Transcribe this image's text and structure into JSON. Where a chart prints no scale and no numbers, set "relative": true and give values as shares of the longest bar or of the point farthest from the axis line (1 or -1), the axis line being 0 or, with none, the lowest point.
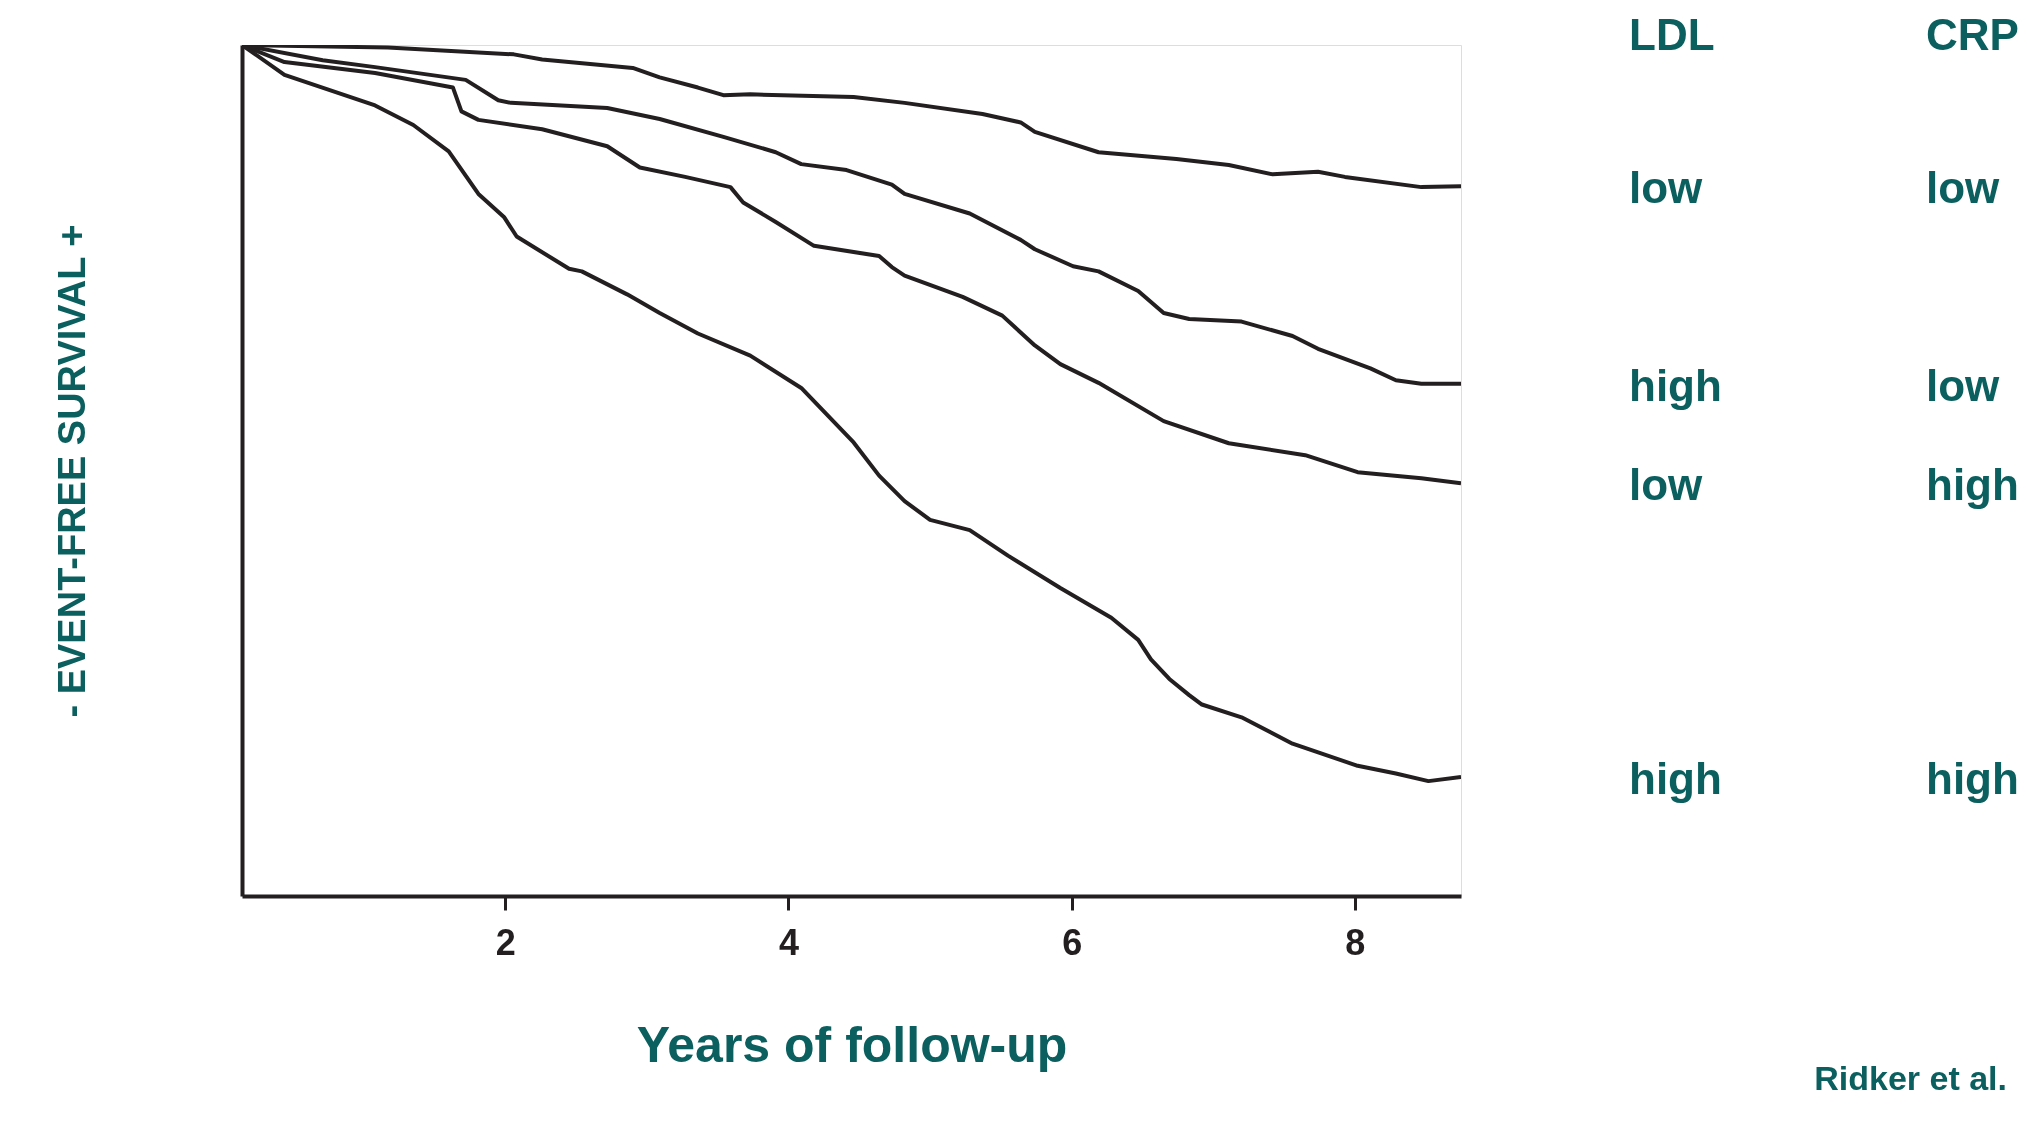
{
  "chart_data": {
    "type": "line",
    "relative": true,
    "xlabel": "Years of follow-up",
    "ylabel": "- EVENT-FREE SURVIVAL +",
    "xlim": [
      0.14,
      8.75
    ],
    "xticks": [
      2,
      4,
      6,
      8
    ],
    "grid": false,
    "legend": false,
    "marker": "none",
    "line_style": "solid",
    "series": [
      {
        "color": "#231f20",
        "x": [
          0.14,
          1.17,
          2.06,
          2.26,
          2.9,
          3.09,
          3.36,
          3.54,
          3.73,
          4.46,
          4.82,
          5.37,
          5.64,
          5.74,
          6.19,
          6.74,
          7.11,
          7.42,
          7.74,
          7.93,
          8.47,
          8.75
        ],
        "values": [
          1.0,
          0.997,
          0.989,
          0.983,
          0.973,
          0.962,
          0.95,
          0.941,
          0.942,
          0.939,
          0.932,
          0.919,
          0.909,
          0.898,
          0.874,
          0.866,
          0.859,
          0.848,
          0.851,
          0.845,
          0.833,
          0.834
        ]
      },
      {
        "color": "#231f20",
        "x": [
          0.14,
          0.71,
          1.08,
          1.72,
          1.95,
          2.04,
          2.72,
          3.09,
          3.54,
          3.91,
          4.09,
          4.41,
          4.73,
          4.82,
          5.28,
          5.64,
          5.74,
          6.01,
          6.19,
          6.47,
          6.65,
          6.83,
          7.2,
          7.56,
          7.74,
          8.11,
          8.29,
          8.47,
          8.75
        ],
        "values": [
          1.0,
          0.982,
          0.974,
          0.959,
          0.935,
          0.932,
          0.926,
          0.913,
          0.892,
          0.874,
          0.86,
          0.853,
          0.836,
          0.825,
          0.802,
          0.771,
          0.76,
          0.74,
          0.734,
          0.711,
          0.685,
          0.678,
          0.675,
          0.658,
          0.643,
          0.62,
          0.606,
          0.602,
          0.602
        ]
      },
      {
        "color": "#231f20",
        "x": [
          0.14,
          0.44,
          1.08,
          1.63,
          1.69,
          1.81,
          2.26,
          2.72,
          2.95,
          3.27,
          3.59,
          3.68,
          3.91,
          4.18,
          4.64,
          4.73,
          4.82,
          5.23,
          5.51,
          5.74,
          5.92,
          6.19,
          6.65,
          7.11,
          7.65,
          8.02,
          8.47,
          8.75
        ],
        "values": [
          1.0,
          0.98,
          0.967,
          0.95,
          0.922,
          0.912,
          0.901,
          0.881,
          0.856,
          0.845,
          0.833,
          0.815,
          0.792,
          0.764,
          0.752,
          0.739,
          0.729,
          0.704,
          0.682,
          0.647,
          0.625,
          0.603,
          0.558,
          0.532,
          0.518,
          0.498,
          0.491,
          0.485
        ]
      },
      {
        "color": "#231f20",
        "x": [
          0.14,
          0.44,
          1.08,
          1.35,
          1.6,
          1.81,
          1.99,
          2.08,
          2.45,
          2.54,
          2.86,
          3.09,
          3.36,
          3.73,
          4.09,
          4.46,
          4.64,
          4.82,
          5.0,
          5.28,
          5.55,
          5.92,
          6.28,
          6.47,
          6.56,
          6.69,
          6.83,
          6.92,
          7.2,
          7.56,
          8.02,
          8.29,
          8.52,
          8.75
        ],
        "values": [
          1.0,
          0.965,
          0.929,
          0.906,
          0.875,
          0.825,
          0.798,
          0.775,
          0.737,
          0.734,
          0.707,
          0.685,
          0.661,
          0.635,
          0.597,
          0.533,
          0.494,
          0.464,
          0.442,
          0.43,
          0.4,
          0.362,
          0.327,
          0.301,
          0.278,
          0.255,
          0.236,
          0.225,
          0.21,
          0.179,
          0.153,
          0.144,
          0.135,
          0.14
        ]
      }
    ],
    "annotations": [
      "LDL",
      "CRP",
      "low",
      "low",
      "high",
      "low",
      "low",
      "high",
      "high",
      "high",
      "Ridker et al."
    ]
  }
}
